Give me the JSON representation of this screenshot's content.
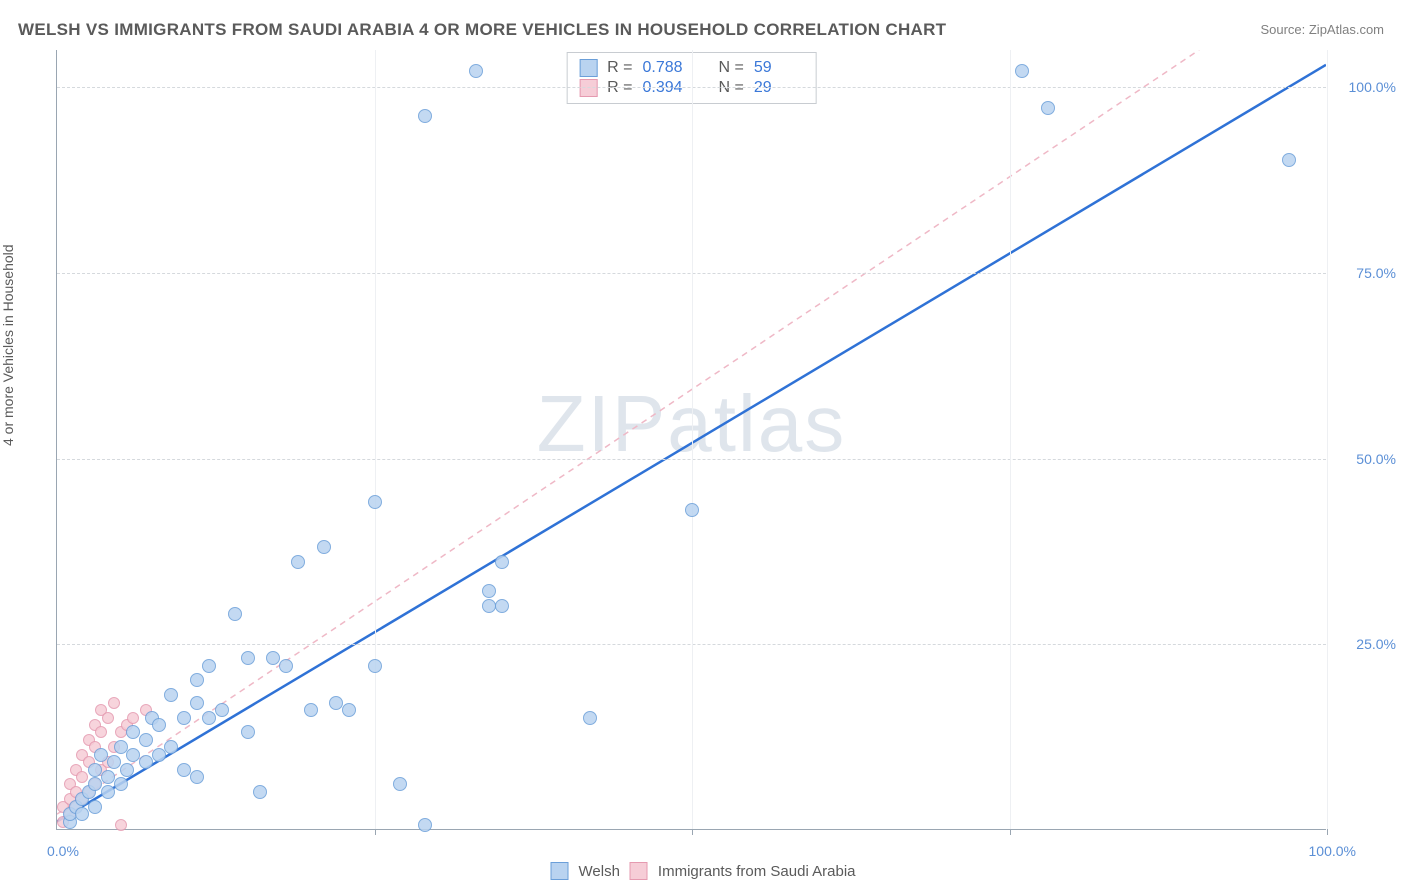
{
  "title": "WELSH VS IMMIGRANTS FROM SAUDI ARABIA 4 OR MORE VEHICLES IN HOUSEHOLD CORRELATION CHART",
  "source": "Source: ZipAtlas.com",
  "y_axis_label": "4 or more Vehicles in Household",
  "watermark": "ZIPatlas",
  "chart": {
    "type": "scatter",
    "xlim": [
      0,
      100
    ],
    "ylim": [
      0,
      105
    ],
    "x_tick_labels": {
      "start": "0.0%",
      "end": "100.0%"
    },
    "y_ticks": [
      {
        "value": 25,
        "label": "25.0%"
      },
      {
        "value": 50,
        "label": "50.0%"
      },
      {
        "value": 75,
        "label": "75.0%"
      },
      {
        "value": 100,
        "label": "100.0%"
      }
    ],
    "x_vgrid": [
      25,
      50,
      75,
      100
    ],
    "background_color": "#ffffff",
    "grid_color": "#d5d9dd",
    "axis_color": "#9aa6b2",
    "tick_label_color": "#5b8fd6",
    "marker_radius": 7,
    "pink_marker_radius": 6,
    "series": [
      {
        "name": "Welsh",
        "color_fill": "#b9d3f0",
        "color_stroke": "#6b9fd9",
        "trend_line_color": "#2f72d6",
        "trend_line_width": 2.5,
        "trend_line": {
          "x1": 0,
          "y1": 1,
          "x2": 100,
          "y2": 103
        },
        "stats": {
          "R_label": "R =",
          "R": "0.788",
          "N_label": "N =",
          "N": "59"
        },
        "points": [
          [
            1,
            1
          ],
          [
            1,
            2
          ],
          [
            1.5,
            3
          ],
          [
            2,
            2
          ],
          [
            2,
            4
          ],
          [
            2.5,
            5
          ],
          [
            3,
            3
          ],
          [
            3,
            6
          ],
          [
            3,
            8
          ],
          [
            3.5,
            10
          ],
          [
            4,
            5
          ],
          [
            4,
            7
          ],
          [
            4.5,
            9
          ],
          [
            5,
            6
          ],
          [
            5,
            11
          ],
          [
            5.5,
            8
          ],
          [
            6,
            10
          ],
          [
            6,
            13
          ],
          [
            7,
            9
          ],
          [
            7,
            12
          ],
          [
            7.5,
            15
          ],
          [
            8,
            10
          ],
          [
            8,
            14
          ],
          [
            9,
            11
          ],
          [
            9,
            18
          ],
          [
            10,
            8
          ],
          [
            10,
            15
          ],
          [
            11,
            7
          ],
          [
            11,
            17
          ],
          [
            11,
            20
          ],
          [
            12,
            15
          ],
          [
            12,
            22
          ],
          [
            13,
            16
          ],
          [
            14,
            29
          ],
          [
            15,
            13
          ],
          [
            15,
            23
          ],
          [
            16,
            5
          ],
          [
            17,
            23
          ],
          [
            18,
            22
          ],
          [
            19,
            36
          ],
          [
            20,
            16
          ],
          [
            21,
            38
          ],
          [
            22,
            17
          ],
          [
            23,
            16
          ],
          [
            25,
            22
          ],
          [
            25,
            44
          ],
          [
            27,
            6
          ],
          [
            29,
            0.5
          ],
          [
            29,
            96
          ],
          [
            33,
            102
          ],
          [
            34,
            32
          ],
          [
            34,
            30
          ],
          [
            35,
            30
          ],
          [
            35,
            36
          ],
          [
            42,
            15
          ],
          [
            50,
            43
          ],
          [
            76,
            102
          ],
          [
            78,
            97
          ],
          [
            97,
            90
          ]
        ]
      },
      {
        "name": "Immigrants from Saudi Arabia",
        "color_fill": "#f6cdd7",
        "color_stroke": "#e59ab0",
        "trend_line_color": "#efb8c6",
        "trend_line_width": 1.5,
        "trend_line_dash": "6,5",
        "trend_line": {
          "x1": 0,
          "y1": 2,
          "x2": 90,
          "y2": 105
        },
        "stats": {
          "R_label": "R =",
          "R": "0.394",
          "N_label": "N =",
          "N": "29"
        },
        "points": [
          [
            0.5,
            1
          ],
          [
            0.5,
            3
          ],
          [
            1,
            2
          ],
          [
            1,
            4
          ],
          [
            1,
            6
          ],
          [
            1.5,
            3
          ],
          [
            1.5,
            5
          ],
          [
            1.5,
            8
          ],
          [
            2,
            4
          ],
          [
            2,
            7
          ],
          [
            2,
            10
          ],
          [
            2.5,
            5
          ],
          [
            2.5,
            9
          ],
          [
            2.5,
            12
          ],
          [
            3,
            6
          ],
          [
            3,
            11
          ],
          [
            3,
            14
          ],
          [
            3.5,
            8
          ],
          [
            3.5,
            13
          ],
          [
            3.5,
            16
          ],
          [
            4,
            9
          ],
          [
            4,
            15
          ],
          [
            4.5,
            11
          ],
          [
            4.5,
            17
          ],
          [
            5,
            13
          ],
          [
            5,
            0.5
          ],
          [
            5.5,
            14
          ],
          [
            6,
            15
          ],
          [
            7,
            16
          ]
        ]
      }
    ]
  },
  "legend_bottom": {
    "series1": "Welsh",
    "series2": "Immigrants from Saudi Arabia"
  }
}
